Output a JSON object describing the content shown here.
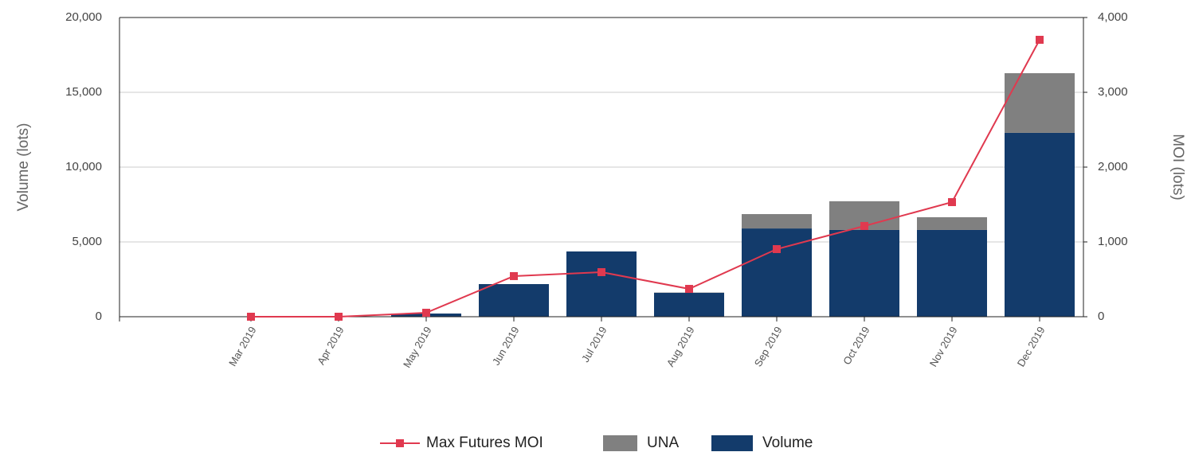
{
  "chart_data": {
    "type": "bar",
    "y_label": "Volume (lots)",
    "y2_label": "MOI (lots)",
    "categories": [
      null,
      "Mar 2019",
      "Apr 2019",
      "May 2019",
      "Jun 2019",
      "Jul 2019",
      "Aug 2019",
      "Sep 2019",
      "Oct 2019",
      "Nov 2019",
      "Dec 2019"
    ],
    "series": [
      {
        "name": "Max Futures MOI",
        "type": "line",
        "axis": "y2",
        "color": "#e0394f",
        "values": [
          null,
          0,
          0,
          53,
          543,
          596,
          372,
          904,
          1213,
          1532,
          3702
        ]
      },
      {
        "name": "UNA",
        "type": "bar",
        "color": "#808080",
        "values": [
          null,
          0,
          0,
          0,
          0,
          0,
          20,
          960,
          1920,
          850,
          3990
        ]
      },
      {
        "name": "Volume",
        "type": "bar",
        "color": "#133b6b",
        "values": [
          null,
          0,
          0,
          213,
          2181,
          4362,
          1596,
          5900,
          5800,
          5800,
          12290
        ]
      }
    ],
    "ylim": [
      0,
      20000
    ],
    "yticks": [
      0,
      {
        "value": 5000,
        "label": "5,000"
      },
      {
        "value": 10000,
        "label": "10,000"
      },
      {
        "value": 15000,
        "label": "15,000"
      },
      {
        "value": 20000,
        "label": "20,000"
      }
    ],
    "y2lim": [
      0,
      4000
    ],
    "y2ticks": [
      0,
      {
        "value": 1000,
        "label": "1,000"
      },
      {
        "value": 2000,
        "label": "2,000"
      },
      {
        "value": 3000,
        "label": "3,000"
      },
      {
        "value": 4000,
        "label": "4,000"
      }
    ],
    "grid": true
  }
}
